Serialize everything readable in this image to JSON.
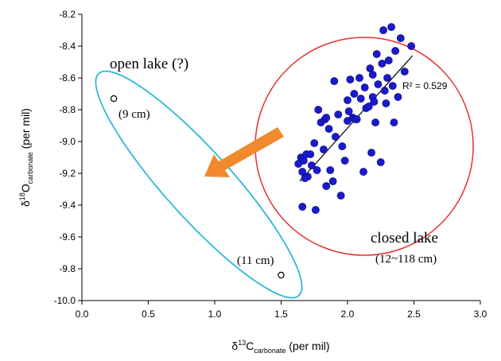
{
  "chart_data": {
    "type": "scatter",
    "xlabel": {
      "prefix": "δ",
      "sup": "13",
      "main": "C",
      "sub": "carbonate",
      "suffix": " (per mil)"
    },
    "ylabel": {
      "prefix": "δ",
      "sup": "18",
      "main": "O",
      "sub": "carbonate",
      "suffix": " (per mil)"
    },
    "xlim": [
      0.0,
      3.0
    ],
    "ylim": [
      -10.0,
      -8.2
    ],
    "x_ticks": [
      "0.0",
      "0.5",
      "1.0",
      "1.5",
      "2.0",
      "2.5",
      "3.0"
    ],
    "y_ticks": [
      "-8.2",
      "-8.4",
      "-8.6",
      "-8.8",
      "-9.0",
      "-9.2",
      "-9.4",
      "-9.6",
      "-9.8",
      "-10.0"
    ],
    "grid": false,
    "series": [
      {
        "marker": "filled-circle",
        "color": "#1a1acc",
        "points": [
          [
            1.66,
            -9.41
          ],
          [
            1.76,
            -9.43
          ],
          [
            1.65,
            -9.1
          ],
          [
            1.67,
            -9.12
          ],
          [
            1.69,
            -9.08
          ],
          [
            1.72,
            -9.08
          ],
          [
            1.63,
            -9.14
          ],
          [
            1.66,
            -9.19
          ],
          [
            1.7,
            -9.22
          ],
          [
            1.75,
            -9.01
          ],
          [
            1.77,
            -9.18
          ],
          [
            1.78,
            -8.8
          ],
          [
            1.8,
            -8.88
          ],
          [
            1.83,
            -8.86
          ],
          [
            1.84,
            -8.85
          ],
          [
            1.84,
            -9.28
          ],
          [
            1.86,
            -8.92
          ],
          [
            1.87,
            -9.18
          ],
          [
            1.89,
            -9.25
          ],
          [
            1.9,
            -8.62
          ],
          [
            1.91,
            -8.97
          ],
          [
            1.93,
            -8.83
          ],
          [
            1.95,
            -9.34
          ],
          [
            1.96,
            -9.03
          ],
          [
            1.98,
            -9.12
          ],
          [
            2.0,
            -8.87
          ],
          [
            2.0,
            -8.74
          ],
          [
            2.01,
            -8.81
          ],
          [
            2.02,
            -8.61
          ],
          [
            2.04,
            -8.85
          ],
          [
            2.05,
            -8.7
          ],
          [
            2.06,
            -8.86
          ],
          [
            2.07,
            -8.86
          ],
          [
            2.09,
            -8.6
          ],
          [
            2.1,
            -8.73
          ],
          [
            2.12,
            -9.19
          ],
          [
            2.13,
            -8.66
          ],
          [
            2.14,
            -8.79
          ],
          [
            2.16,
            -8.78
          ],
          [
            2.17,
            -8.54
          ],
          [
            2.18,
            -9.07
          ],
          [
            2.19,
            -8.58
          ],
          [
            2.19,
            -8.72
          ],
          [
            2.2,
            -8.75
          ],
          [
            2.21,
            -8.88
          ],
          [
            2.22,
            -8.45
          ],
          [
            2.23,
            -8.64
          ],
          [
            2.25,
            -9.13
          ],
          [
            2.26,
            -8.51
          ],
          [
            2.27,
            -8.3
          ],
          [
            2.28,
            -8.68
          ],
          [
            2.29,
            -8.76
          ],
          [
            2.3,
            -8.6
          ],
          [
            2.31,
            -8.49
          ],
          [
            2.33,
            -8.28
          ],
          [
            2.34,
            -8.65
          ],
          [
            2.35,
            -8.88
          ],
          [
            2.36,
            -8.43
          ],
          [
            2.4,
            -8.35
          ],
          [
            2.43,
            -8.56
          ],
          [
            2.48,
            -8.4
          ],
          [
            1.68,
            -9.23
          ],
          [
            1.73,
            -9.15
          ],
          [
            2.38,
            -8.72
          ],
          [
            1.82,
            -9.05
          ]
        ]
      },
      {
        "marker": "open-circle",
        "color": "#000000",
        "points": [
          [
            0.24,
            -8.73
          ],
          [
            1.5,
            -9.84
          ]
        ]
      }
    ],
    "trendline": {
      "from": [
        1.64,
        -9.25
      ],
      "to": [
        2.49,
        -8.46
      ],
      "label": "R² = 0.529"
    },
    "annotations": {
      "open_lake": "open lake (?)",
      "pt_9cm": "(9 cm)",
      "pt_11cm": "(11 cm)",
      "closed_lake": "closed lake",
      "closed_range": "(12~118 cm)"
    },
    "colors": {
      "closed_ellipse": "#e83030",
      "open_ellipse": "#30b8d8",
      "arrow": "#f08a2c",
      "axes": "#000000"
    }
  }
}
